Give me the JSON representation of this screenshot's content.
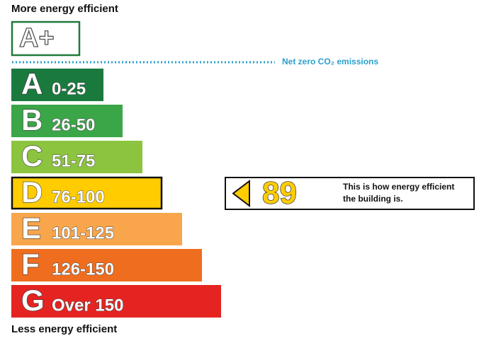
{
  "header": {
    "top_label": "More energy efficient",
    "bottom_label": "Less energy efficient"
  },
  "top_band": {
    "letter": "A+",
    "color": "#1f7a3a"
  },
  "net_zero": {
    "label": "Net zero CO₂ emissions",
    "color": "#2aa0cc"
  },
  "bands": [
    {
      "letter": "A",
      "range": "0-25",
      "color": "#1a7a3e"
    },
    {
      "letter": "B",
      "range": "26-50",
      "color": "#3aa648"
    },
    {
      "letter": "C",
      "range": "51-75",
      "color": "#8cc43f"
    },
    {
      "letter": "D",
      "range": "76-100",
      "color": "#ffcc00"
    },
    {
      "letter": "E",
      "range": "101-125",
      "color": "#f8a54c"
    },
    {
      "letter": "F",
      "range": "126-150",
      "color": "#ef6d1e"
    },
    {
      "letter": "G",
      "range": "Over 150",
      "color": "#e52421"
    }
  ],
  "rating": {
    "value": 89,
    "band": 3,
    "note_lines": [
      "This is how energy efficient",
      "the building is."
    ],
    "color": "#ffcc00"
  }
}
